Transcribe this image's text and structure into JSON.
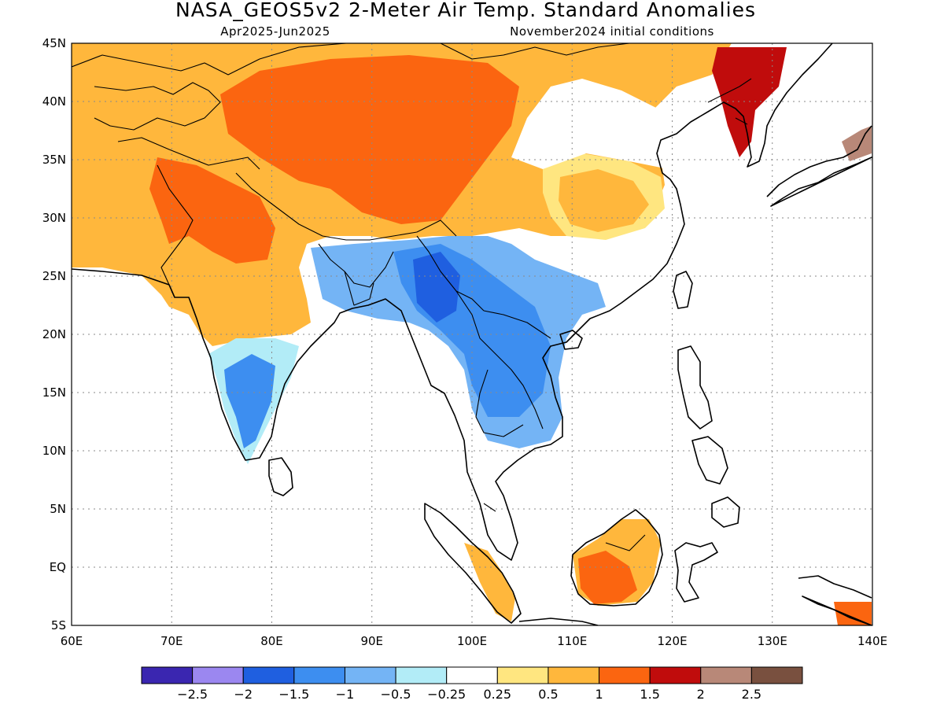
{
  "title": "NASA_GEOS5v2 2-Meter Air Temp. Standard Anomalies",
  "subtitle_left": "Apr2025-Jun2025",
  "subtitle_right": "November2024 initial conditions",
  "map": {
    "lon_range": [
      60,
      140
    ],
    "lat_range": [
      -5,
      45
    ],
    "lon_ticks": [
      {
        "value": 60,
        "label": "60E"
      },
      {
        "value": 70,
        "label": "70E"
      },
      {
        "value": 80,
        "label": "80E"
      },
      {
        "value": 90,
        "label": "90E"
      },
      {
        "value": 100,
        "label": "100E"
      },
      {
        "value": 110,
        "label": "110E"
      },
      {
        "value": 120,
        "label": "120E"
      },
      {
        "value": 130,
        "label": "130E"
      },
      {
        "value": 140,
        "label": "140E"
      }
    ],
    "lat_ticks": [
      {
        "value": 45,
        "label": "45N"
      },
      {
        "value": 40,
        "label": "40N"
      },
      {
        "value": 35,
        "label": "35N"
      },
      {
        "value": 30,
        "label": "30N"
      },
      {
        "value": 25,
        "label": "25N"
      },
      {
        "value": 20,
        "label": "20N"
      },
      {
        "value": 15,
        "label": "15N"
      },
      {
        "value": 10,
        "label": "10N"
      },
      {
        "value": 5,
        "label": "5N"
      },
      {
        "value": 0,
        "label": "EQ"
      },
      {
        "value": -5,
        "label": "5S"
      }
    ]
  },
  "colorbar": {
    "colors": [
      "#3a26b0",
      "#9b87f0",
      "#1f5fe0",
      "#3d8ef0",
      "#74b4f5",
      "#b2ecf7",
      "#ffffff",
      "#ffe680",
      "#ffb73c",
      "#fb6510",
      "#c00c0c",
      "#b88878",
      "#79503f"
    ],
    "labels": [
      "-2.5",
      "-2",
      "-1.5",
      "-1",
      "-0.5",
      "-0.25",
      "0.25",
      "0.5",
      "1",
      "1.5",
      "2",
      "2.5"
    ]
  }
}
